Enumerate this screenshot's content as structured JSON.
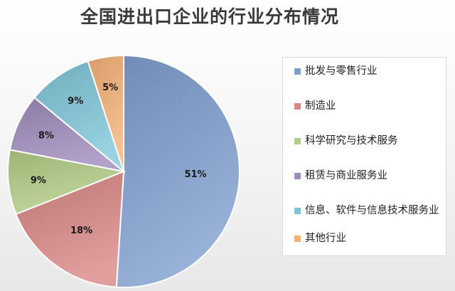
{
  "chart_data": {
    "type": "pie",
    "title": "全国进出口企业的行业分布情况",
    "categories": [
      "批发与零售行业",
      "制造业",
      "科学研究与技术服务",
      "租赁与商业服务业",
      "信息、软件与信息技术服务业",
      "其他行业"
    ],
    "values": [
      51,
      18,
      9,
      8,
      9,
      5
    ],
    "unit": "%",
    "data_labels": [
      "51%",
      "18%",
      "9%",
      "8%",
      "9%",
      "5%"
    ],
    "colors": [
      "#7f9fcf",
      "#d88683",
      "#b3cc85",
      "#9f8bbc",
      "#7fc5d8",
      "#f5b277"
    ],
    "legend_position": "right",
    "start_angle": "12 o'clock",
    "direction": "clockwise"
  }
}
